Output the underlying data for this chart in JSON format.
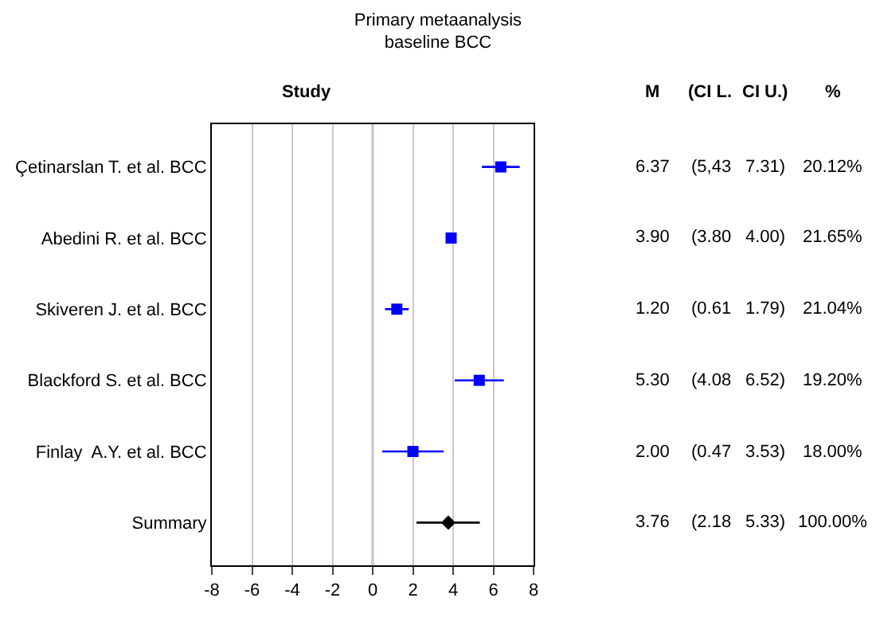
{
  "chart_data": {
    "type": "scatter",
    "orientation": "horizontal",
    "title": "Primary metaanalysis",
    "subtitle": "baseline BCC",
    "categories": [
      "Çetinarslan T. et al. BCC",
      "Abedini R. et al. BCC",
      "Skiveren J. et al. BCC",
      "Blackford S. et al. BCC",
      "Finlay  A.Y. et al. BCC",
      "Summary"
    ],
    "series": [
      {
        "color": "#0000ff",
        "marker": "square",
        "values": [
          6.37,
          3.9,
          1.2,
          5.3,
          2.0,
          null
        ],
        "errors": [
          [
            5.43,
            7.31
          ],
          [
            3.8,
            4.0
          ],
          [
            0.61,
            1.79
          ],
          [
            4.08,
            6.52
          ],
          [
            0.47,
            3.53
          ],
          null
        ]
      },
      {
        "color": "#000000",
        "marker": "diamond",
        "values": [
          null,
          null,
          null,
          null,
          null,
          3.76
        ],
        "errors": [
          null,
          null,
          null,
          null,
          null,
          [
            2.18,
            5.33
          ]
        ]
      }
    ],
    "annotations": [
      "Study",
      "M",
      "(CI L.",
      "CI U.)",
      "%",
      "6.37",
      "(5,43",
      "7.31)",
      "20.12%",
      "3.90",
      "(3.80",
      "4.00)",
      "21.65%",
      "1.20",
      "(0.61",
      "1.79)",
      "21.04%",
      "5.30",
      "(4.08",
      "6.52)",
      "19.20%",
      "2.00",
      "(0.47",
      "3.53)",
      "18.00%",
      "3.76",
      "(2.18",
      "5.33)",
      "100.00%"
    ],
    "xlim": [
      -8,
      8
    ],
    "xticks": [
      -8,
      -6,
      -4,
      -2,
      0,
      2,
      4,
      6,
      8
    ],
    "grid": "x",
    "ref_lines": [
      {
        "axis": "x",
        "value": 0,
        "color": "#ff0000"
      }
    ]
  }
}
